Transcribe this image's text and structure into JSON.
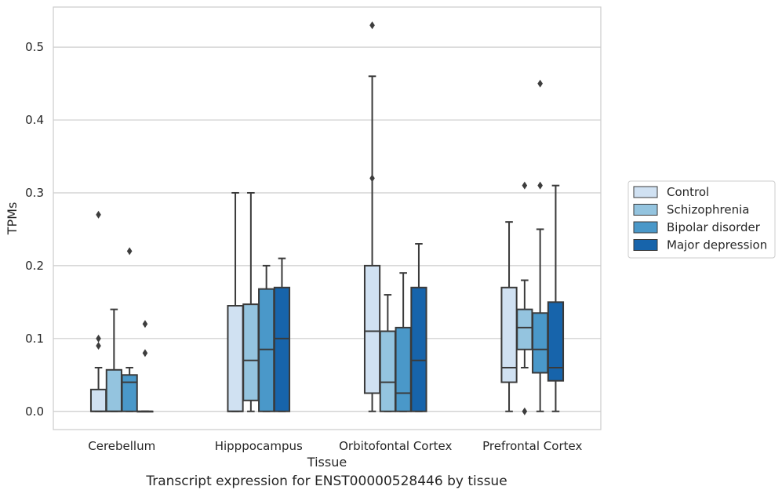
{
  "caption": "Transcript expression for ENST00000528446 by tissue",
  "chart_data": {
    "type": "box",
    "title": "",
    "xlabel": "Tissue",
    "ylabel": "TPMs",
    "ylim": [
      -0.025,
      0.555
    ],
    "yticks": [
      0.0,
      0.1,
      0.2,
      0.3,
      0.4,
      0.5
    ],
    "ytick_labels": [
      "0.0",
      "0.1",
      "0.2",
      "0.3",
      "0.4",
      "0.5"
    ],
    "grid": true,
    "legend_position": "right",
    "categories": [
      "Cerebellum",
      "Hipppocampus",
      "Orbitofontal Cortex",
      "Prefrontal Cortex"
    ],
    "series": [
      {
        "name": "Control",
        "color": "#d0e1f2",
        "boxes": [
          {
            "whislo": 0.0,
            "q1": 0.0,
            "med": 0.0,
            "q3": 0.03,
            "whishi": 0.06,
            "fliers": [
              0.09,
              0.1,
              0.27
            ]
          },
          {
            "whislo": 0.0,
            "q1": 0.0,
            "med": 0.0,
            "q3": 0.145,
            "whishi": 0.3,
            "fliers": []
          },
          {
            "whislo": 0.0,
            "q1": 0.025,
            "med": 0.11,
            "q3": 0.2,
            "whishi": 0.46,
            "fliers": [
              0.32,
              0.53
            ]
          },
          {
            "whislo": 0.0,
            "q1": 0.04,
            "med": 0.06,
            "q3": 0.17,
            "whishi": 0.26,
            "fliers": []
          }
        ]
      },
      {
        "name": "Schizophrenia",
        "color": "#94c4df",
        "boxes": [
          {
            "whislo": 0.0,
            "q1": 0.0,
            "med": 0.0,
            "q3": 0.057,
            "whishi": 0.14,
            "fliers": []
          },
          {
            "whislo": 0.0,
            "q1": 0.015,
            "med": 0.07,
            "q3": 0.147,
            "whishi": 0.3,
            "fliers": []
          },
          {
            "whislo": 0.0,
            "q1": 0.0,
            "med": 0.04,
            "q3": 0.11,
            "whishi": 0.16,
            "fliers": []
          },
          {
            "whislo": 0.06,
            "q1": 0.085,
            "med": 0.115,
            "q3": 0.14,
            "whishi": 0.18,
            "fliers": [
              0.0,
              0.31
            ]
          }
        ]
      },
      {
        "name": "Bipolar disorder",
        "color": "#4a98c9",
        "boxes": [
          {
            "whislo": 0.0,
            "q1": 0.0,
            "med": 0.04,
            "q3": 0.05,
            "whishi": 0.06,
            "fliers": [
              0.22
            ]
          },
          {
            "whislo": 0.0,
            "q1": 0.0,
            "med": 0.085,
            "q3": 0.168,
            "whishi": 0.2,
            "fliers": []
          },
          {
            "whislo": 0.0,
            "q1": 0.0,
            "med": 0.025,
            "q3": 0.115,
            "whishi": 0.19,
            "fliers": []
          },
          {
            "whislo": 0.0,
            "q1": 0.053,
            "med": 0.085,
            "q3": 0.135,
            "whishi": 0.25,
            "fliers": [
              0.31,
              0.45
            ]
          }
        ]
      },
      {
        "name": "Major depression",
        "color": "#1764ab",
        "boxes": [
          {
            "whislo": 0.0,
            "q1": 0.0,
            "med": 0.0,
            "q3": 0.0,
            "whishi": 0.0,
            "fliers": [
              0.08,
              0.12
            ]
          },
          {
            "whislo": 0.0,
            "q1": 0.0,
            "med": 0.1,
            "q3": 0.17,
            "whishi": 0.21,
            "fliers": []
          },
          {
            "whislo": 0.0,
            "q1": 0.0,
            "med": 0.07,
            "q3": 0.17,
            "whishi": 0.23,
            "fliers": []
          },
          {
            "whislo": 0.0,
            "q1": 0.042,
            "med": 0.06,
            "q3": 0.15,
            "whishi": 0.31,
            "fliers": []
          }
        ]
      }
    ]
  }
}
